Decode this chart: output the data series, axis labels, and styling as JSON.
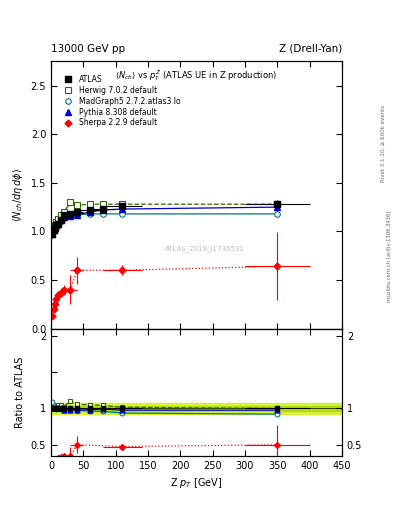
{
  "title_left": "13000 GeV pp",
  "title_right": "Z (Drell-Yan)",
  "ylabel_main": "<N_{ch}/dη dϕ>",
  "ylabel_ratio": "Ratio to ATLAS",
  "xlabel": "Z p_{T} [GeV]",
  "watermark": "ATLAS_2019_I1736531",
  "right_label1": "Rivet 3.1.10, ≥ 600k events",
  "right_label2": "mcplots.cern.ch [arXiv:1306.3436]",
  "atlas_x": [
    2.0,
    4.0,
    6.0,
    8.0,
    10.0,
    15.0,
    20.0,
    30.0,
    40.0,
    60.0,
    80.0,
    110.0,
    350.0
  ],
  "atlas_y": [
    0.97,
    1.01,
    1.04,
    1.07,
    1.08,
    1.12,
    1.17,
    1.18,
    1.2,
    1.22,
    1.23,
    1.26,
    1.28
  ],
  "atlas_yerr": [
    0.04,
    0.03,
    0.03,
    0.03,
    0.03,
    0.03,
    0.03,
    0.03,
    0.03,
    0.03,
    0.03,
    0.03,
    0.04
  ],
  "atlas_xerr": [
    2.0,
    2.0,
    2.0,
    2.0,
    2.0,
    5.0,
    5.0,
    10.0,
    10.0,
    20.0,
    20.0,
    30.0,
    50.0
  ],
  "herwig_x": [
    2.0,
    4.0,
    6.0,
    8.0,
    10.0,
    15.0,
    20.0,
    30.0,
    40.0,
    60.0,
    80.0,
    110.0,
    350.0
  ],
  "herwig_y": [
    1.0,
    1.04,
    1.07,
    1.1,
    1.13,
    1.17,
    1.2,
    1.3,
    1.27,
    1.28,
    1.28,
    1.28,
    1.28
  ],
  "herwig_xerr": [
    2.0,
    2.0,
    2.0,
    2.0,
    2.0,
    5.0,
    5.0,
    10.0,
    10.0,
    20.0,
    20.0,
    30.0,
    50.0
  ],
  "madgraph_x": [
    2.0,
    4.0,
    6.0,
    8.0,
    10.0,
    15.0,
    20.0,
    30.0,
    40.0,
    60.0,
    80.0,
    110.0,
    350.0
  ],
  "madgraph_y": [
    1.05,
    1.04,
    1.05,
    1.06,
    1.08,
    1.11,
    1.14,
    1.17,
    1.17,
    1.18,
    1.18,
    1.18,
    1.18
  ],
  "madgraph_xerr": [
    2.0,
    2.0,
    2.0,
    2.0,
    2.0,
    5.0,
    5.0,
    10.0,
    10.0,
    20.0,
    20.0,
    30.0,
    50.0
  ],
  "pythia_x": [
    2.0,
    4.0,
    6.0,
    8.0,
    10.0,
    15.0,
    20.0,
    30.0,
    40.0,
    60.0,
    80.0,
    110.0,
    350.0
  ],
  "pythia_y": [
    0.97,
    1.01,
    1.04,
    1.07,
    1.08,
    1.12,
    1.15,
    1.16,
    1.17,
    1.2,
    1.22,
    1.23,
    1.25
  ],
  "pythia_xerr": [
    2.0,
    2.0,
    2.0,
    2.0,
    2.0,
    5.0,
    5.0,
    10.0,
    10.0,
    20.0,
    20.0,
    30.0,
    50.0
  ],
  "sherpa_x": [
    2.0,
    4.0,
    6.0,
    8.0,
    10.0,
    15.0,
    20.0,
    30.0,
    40.0,
    110.0,
    350.0
  ],
  "sherpa_y": [
    0.13,
    0.2,
    0.25,
    0.3,
    0.35,
    0.37,
    0.4,
    0.4,
    0.6,
    0.6,
    0.64
  ],
  "sherpa_yerr_lo": [
    0.02,
    0.03,
    0.03,
    0.04,
    0.04,
    0.05,
    0.05,
    0.15,
    0.14,
    0.05,
    0.35
  ],
  "sherpa_yerr_hi": [
    0.02,
    0.03,
    0.03,
    0.04,
    0.04,
    0.05,
    0.05,
    0.15,
    0.14,
    0.05,
    0.35
  ],
  "sherpa_xerr": [
    2.0,
    2.0,
    2.0,
    2.0,
    2.0,
    5.0,
    5.0,
    10.0,
    10.0,
    30.0,
    50.0
  ],
  "xlim": [
    0,
    450
  ],
  "ylim_main": [
    0,
    2.75
  ],
  "ylim_ratio": [
    0.35,
    2.1
  ],
  "atlas_color": "#000000",
  "herwig_color": "#336600",
  "madgraph_color": "#007777",
  "pythia_color": "#0000cc",
  "sherpa_color": "#ff0000",
  "atlas_band_color": "#ccee00",
  "atlas_band_lo": 0.93,
  "atlas_band_hi": 1.07,
  "atlas_band_color2": "#aada00",
  "atlas_band2_lo": 0.97,
  "atlas_band2_hi": 1.03
}
